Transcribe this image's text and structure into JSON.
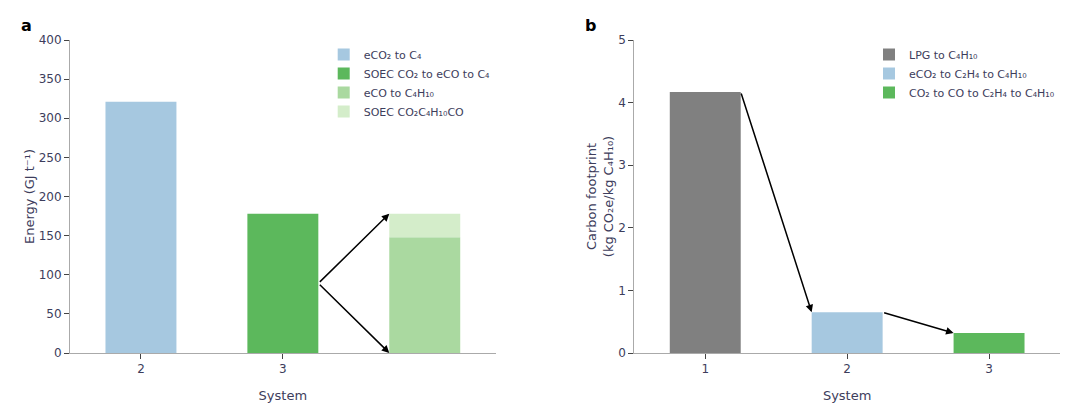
{
  "chart_data": [
    {
      "type": "bar",
      "title": "a",
      "xlabel": "System",
      "ylabel": "Energy (GJ t⁻¹)",
      "categories": [
        "2",
        "3",
        null
      ],
      "series": [
        {
          "name": "eCO₂ to C₄",
          "color": "#a6c8e0",
          "values": [
            321,
            null,
            null
          ]
        },
        {
          "name": "SOEC CO₂ to eCO to C₄",
          "color": "#5cb85c",
          "values": [
            null,
            178,
            null
          ]
        },
        {
          "name": "eCO to C₄H₁₀",
          "color": "#aad9a0",
          "values": [
            null,
            null,
            148
          ]
        },
        {
          "name": "SOEC CO₂C₄H₁₀CO",
          "color": "#d4edca",
          "values": [
            null,
            null,
            30
          ]
        }
      ],
      "stacked": true,
      "ylim": [
        0,
        400
      ],
      "yticks": [
        0,
        50,
        100,
        150,
        200,
        250,
        300,
        350,
        400
      ],
      "grid": false,
      "legend": "upper right"
    },
    {
      "type": "bar",
      "title": "b",
      "xlabel": "System",
      "ylabel": "Carbon footprint\n(kg CO₂e/kg C₄H₁₀)",
      "categories": [
        "1",
        "2",
        "3"
      ],
      "series": [
        {
          "name": "LPG to C₄H₁₀",
          "color": "#808080",
          "values": [
            4.17,
            null,
            null
          ]
        },
        {
          "name": "eCO₂ to C₂H₄ to C₄H₁₀",
          "color": "#a6c8e0",
          "values": [
            null,
            0.65,
            null
          ]
        },
        {
          "name": "CO₂ to CO to C₂H₄ to C₄H₁₀",
          "color": "#5cb85c",
          "values": [
            null,
            null,
            0.32
          ]
        }
      ],
      "stacked": false,
      "ylim": [
        0,
        5
      ],
      "yticks": [
        0,
        1,
        2,
        3,
        4,
        5
      ],
      "grid": false,
      "legend": "upper right"
    }
  ]
}
